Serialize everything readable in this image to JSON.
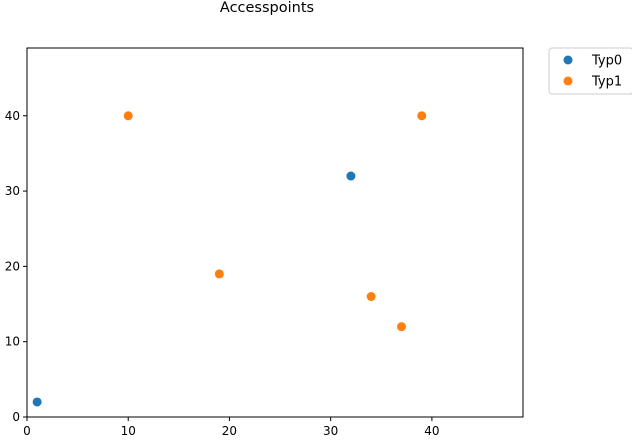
{
  "chart_data": {
    "type": "scatter",
    "title": "Accesspoints",
    "xlabel": "",
    "ylabel": "",
    "xlim": [
      0,
      49
    ],
    "ylim": [
      0,
      49
    ],
    "x_ticks": [
      0,
      10,
      20,
      30,
      40
    ],
    "y_ticks": [
      0,
      10,
      20,
      30,
      40
    ],
    "grid": false,
    "legend_position": "outside-top-right",
    "series": [
      {
        "name": "Typ0",
        "color": "#1f77b4",
        "points": [
          {
            "x": 1,
            "y": 2
          },
          {
            "x": 32,
            "y": 32
          }
        ]
      },
      {
        "name": "Typ1",
        "color": "#ff7f0e",
        "points": [
          {
            "x": 10,
            "y": 40
          },
          {
            "x": 39,
            "y": 40
          },
          {
            "x": 19,
            "y": 19
          },
          {
            "x": 34,
            "y": 16
          },
          {
            "x": 37,
            "y": 12
          }
        ]
      }
    ]
  }
}
